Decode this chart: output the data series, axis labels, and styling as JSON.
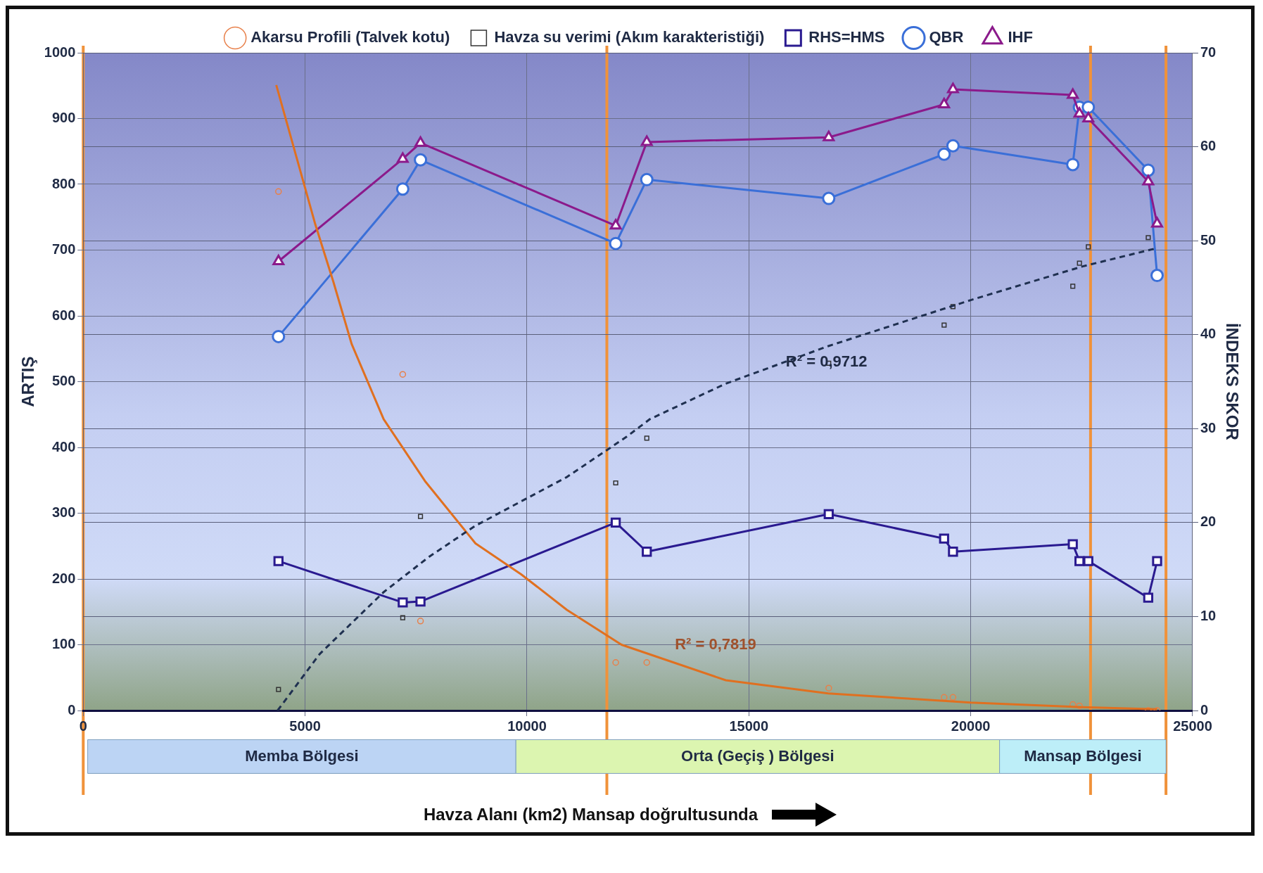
{
  "chart_data": {
    "type": "line",
    "xlabel": "Havza Alanı (km2) Mansap  doğrultusunda",
    "ylabel": "ARTIŞ",
    "y2label": "İNDEKS SKOR",
    "xlim": [
      0,
      25000
    ],
    "xticks": [
      0,
      5000,
      10000,
      15000,
      20000,
      25000
    ],
    "ylim": [
      0,
      1000
    ],
    "yticks": [
      0,
      100,
      200,
      300,
      400,
      500,
      600,
      700,
      800,
      900,
      1000
    ],
    "y2lim": [
      0,
      70
    ],
    "y2ticks": [
      0,
      10,
      20,
      30,
      40,
      50,
      60,
      70
    ],
    "grid": true,
    "legend": "top",
    "series": [
      {
        "name": "Akarsu Profili (Talvek kotu)",
        "type": "scatter",
        "marker": "circle",
        "color": "#e8804a",
        "x": [
          4400,
          7200,
          7600,
          12000,
          12700,
          16800,
          19400,
          19600,
          22300,
          22450,
          24000,
          24200
        ],
        "values": [
          789,
          511,
          136,
          73,
          73,
          34,
          20,
          20,
          9,
          7,
          0,
          0
        ]
      },
      {
        "name": "Havza su verimi (Akım karakteristiği)",
        "type": "scatter",
        "marker": "square",
        "color": "#333333",
        "x": [
          4400,
          7200,
          7600,
          12000,
          12700,
          16800,
          19400,
          19600,
          22300,
          22450,
          22650,
          24000
        ],
        "values": [
          32,
          141,
          295,
          346,
          414,
          528,
          586,
          614,
          645,
          680,
          705,
          719
        ]
      },
      {
        "name": "RHS=HMS",
        "axis": "y2",
        "marker": "square",
        "color": "#2a1a90",
        "x": [
          4400,
          7200,
          7600,
          12000,
          12700,
          16800,
          19400,
          19600,
          22300,
          22450,
          22650,
          24000,
          24200
        ],
        "values": [
          15.9,
          11.5,
          11.6,
          20.0,
          16.9,
          20.9,
          18.3,
          16.9,
          17.7,
          15.9,
          15.9,
          12.0,
          15.9
        ]
      },
      {
        "name": "QBR",
        "axis": "y2",
        "marker": "circle",
        "color": "#3a6fd8",
        "x": [
          4400,
          7200,
          7600,
          12000,
          12700,
          16800,
          19400,
          19600,
          22300,
          22450,
          22650,
          24000,
          24200
        ],
        "values": [
          39.8,
          55.5,
          58.6,
          49.7,
          56.5,
          54.5,
          59.2,
          60.1,
          58.1,
          64.2,
          64.2,
          57.5,
          46.3
        ]
      },
      {
        "name": "IHF",
        "axis": "y2",
        "marker": "triangle",
        "color": "#8b1a8b",
        "x": [
          4400,
          7200,
          7600,
          12000,
          12700,
          16800,
          19400,
          19600,
          22300,
          22450,
          22650,
          24000,
          24200
        ],
        "values": [
          47.8,
          58.7,
          60.4,
          51.6,
          60.5,
          61.0,
          64.5,
          66.1,
          65.5,
          63.5,
          63.0,
          56.3,
          51.8
        ]
      },
      {
        "type": "line",
        "marker": "none",
        "color": "#e07020",
        "x": [
          4350,
          5230,
          5640,
          6050,
          6770,
          7700,
          8840,
          9870,
          10900,
          12130,
          14480,
          16790,
          20000,
          22510,
          24200
        ],
        "values": [
          951,
          739,
          651,
          557,
          443,
          349,
          254,
          207,
          153,
          100,
          46,
          26,
          12,
          5,
          2
        ]
      },
      {
        "type": "line",
        "marker": "none",
        "line_style": "dashed",
        "color": "#1f3050",
        "x": [
          4380,
          5330,
          6770,
          7800,
          8840,
          10900,
          12240,
          12770,
          14480,
          16790,
          20000,
          22510,
          24200
        ],
        "values": [
          0,
          86,
          180,
          234,
          281,
          355,
          416,
          443,
          497,
          554,
          624,
          675,
          703
        ]
      }
    ],
    "ref_lines": [
      {
        "axis": "x",
        "value": 0,
        "color": "#f0923a"
      },
      {
        "axis": "x",
        "value": 11800,
        "color": "#f0923a"
      },
      {
        "axis": "x",
        "value": 22700,
        "color": "#f0923a"
      },
      {
        "axis": "x",
        "value": 24400,
        "color": "#f0923a"
      }
    ],
    "annotations": [
      "R² = 0,9712",
      "R² = 0,7819",
      "Memba Bölgesi",
      "Orta (Geçiş ) Bölgesi",
      "Mansap Bölgesi"
    ]
  }
}
